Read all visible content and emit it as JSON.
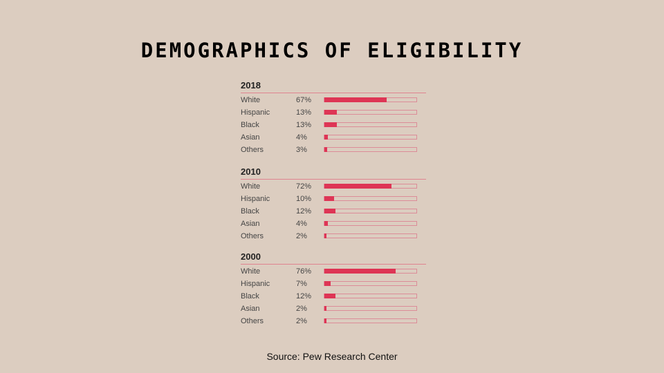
{
  "title": "DEMOGRAPHICS OF ELIGIBILITY",
  "source": "Source: Pew Research Center",
  "colors": {
    "background": "#dccdc0",
    "bar": "#de3555",
    "rule": "#e0838f"
  },
  "chart_data": {
    "type": "bar",
    "title": "DEMOGRAPHICS OF ELIGIBILITY",
    "xlim": [
      0,
      100
    ],
    "groups": [
      {
        "name": "2018",
        "rows": [
          {
            "label": "White",
            "pct_label": "67%",
            "value": 67
          },
          {
            "label": "Hispanic",
            "pct_label": "13%",
            "value": 13
          },
          {
            "label": "Black",
            "pct_label": "13%",
            "value": 13
          },
          {
            "label": "Asian",
            "pct_label": "4%",
            "value": 4
          },
          {
            "label": "Others",
            "pct_label": "3%",
            "value": 3
          }
        ]
      },
      {
        "name": "2010",
        "rows": [
          {
            "label": "White",
            "pct_label": "72%",
            "value": 72
          },
          {
            "label": "Hispanic",
            "pct_label": "10%",
            "value": 10
          },
          {
            "label": "Black",
            "pct_label": "12%",
            "value": 12
          },
          {
            "label": "Asian",
            "pct_label": "4%",
            "value": 4
          },
          {
            "label": "Others",
            "pct_label": "2%",
            "value": 2
          }
        ]
      },
      {
        "name": "2000",
        "rows": [
          {
            "label": "White",
            "pct_label": "76%",
            "value": 76
          },
          {
            "label": "Hispanic",
            "pct_label": "7%",
            "value": 7
          },
          {
            "label": "Black",
            "pct_label": "12%",
            "value": 12
          },
          {
            "label": "Asian",
            "pct_label": "2%",
            "value": 2
          },
          {
            "label": "Others",
            "pct_label": "2%",
            "value": 2
          }
        ]
      }
    ]
  }
}
